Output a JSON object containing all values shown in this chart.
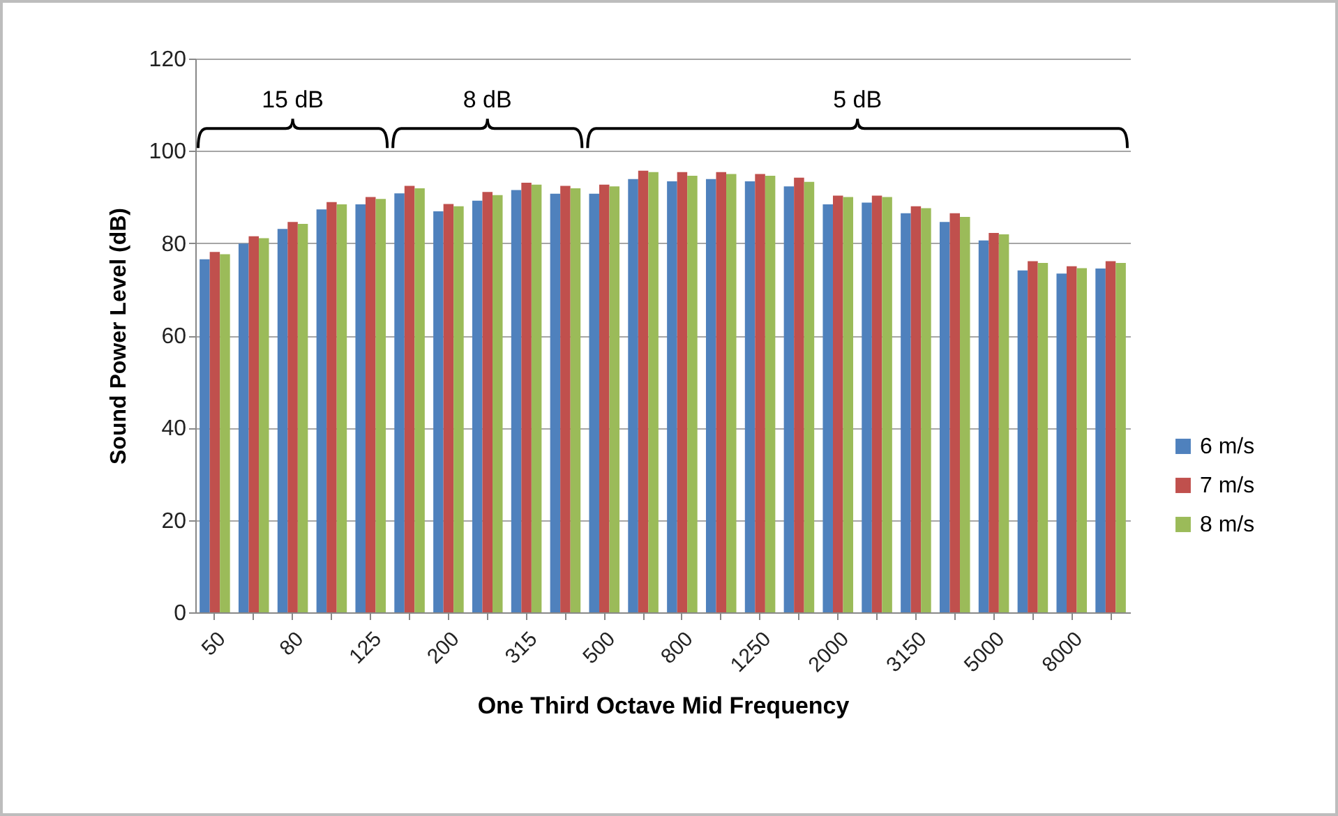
{
  "chart_data": {
    "type": "bar",
    "xlabel": "One Third Octave Mid Frequency",
    "ylabel": "Sound Power Level (dB)",
    "categories": [
      "50",
      null,
      "80",
      null,
      "125",
      null,
      "200",
      null,
      "315",
      null,
      "500",
      null,
      "800",
      null,
      "1250",
      null,
      "2000",
      null,
      "3150",
      null,
      "5000",
      null,
      "8000",
      null
    ],
    "series": [
      {
        "name": "6 m/s",
        "color": "#4f81bd",
        "values": [
          76.5,
          79.9,
          83.1,
          87.3,
          88.4,
          90.8,
          86.9,
          89.2,
          91.5,
          90.7,
          90.7,
          93.9,
          93.4,
          93.9,
          93.4,
          92.3,
          88.4,
          88.8,
          86.5,
          84.6,
          80.6,
          74.1,
          73.4,
          74.5
        ]
      },
      {
        "name": "7 m/s",
        "color": "#c0504d",
        "values": [
          78.1,
          81.5,
          84.6,
          88.9,
          90.0,
          92.4,
          88.5,
          91.1,
          93.1,
          92.4,
          92.7,
          95.7,
          95.4,
          95.4,
          95.0,
          94.2,
          90.3,
          90.3,
          88.0,
          86.5,
          82.2,
          76.1,
          75.0,
          76.1
        ]
      },
      {
        "name": "8 m/s",
        "color": "#9bbb59",
        "values": [
          77.6,
          81.1,
          84.2,
          88.4,
          89.6,
          91.9,
          88.0,
          90.4,
          92.7,
          91.9,
          92.3,
          95.4,
          94.6,
          95.0,
          94.6,
          93.3,
          90.0,
          90.0,
          87.6,
          85.7,
          81.9,
          75.7,
          74.6,
          75.7
        ]
      }
    ],
    "ylim": [
      0,
      120
    ],
    "yticks": [
      0,
      20,
      40,
      60,
      80,
      100,
      120
    ],
    "grid": "y",
    "legend": "right",
    "annotations": [
      "15 dB",
      "8 dB",
      "5 dB"
    ]
  }
}
